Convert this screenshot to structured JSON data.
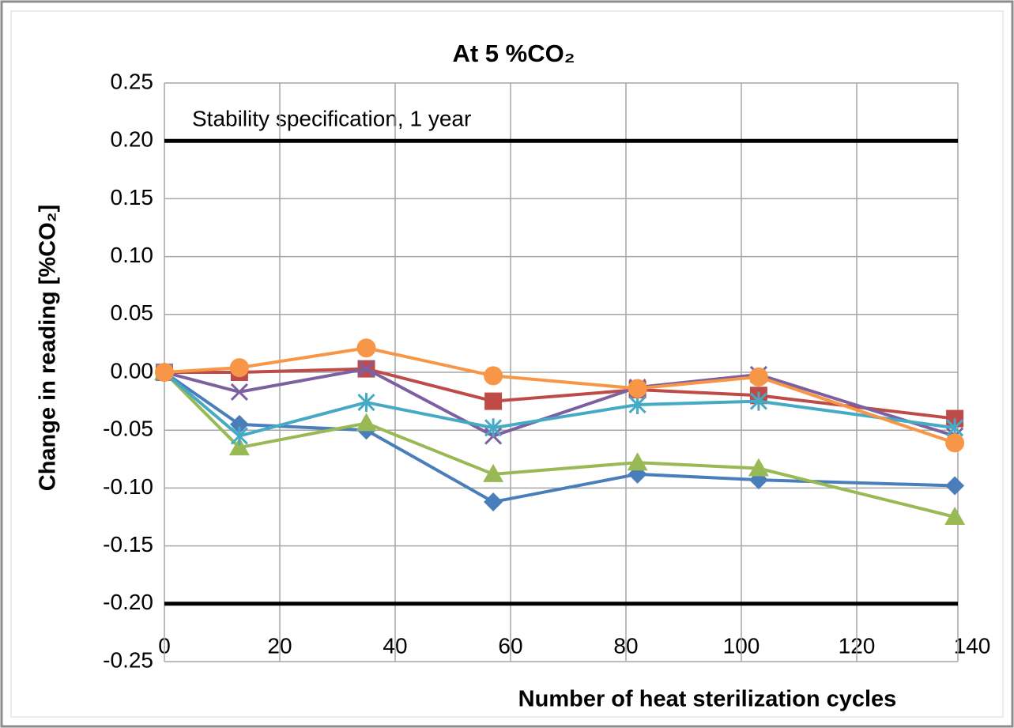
{
  "chart_data": {
    "type": "line",
    "title": "At 5 %CO₂",
    "x_label": "Number of heat sterilization cycles",
    "y_label": "Change in reading [%CO₂]",
    "annotation": "Stability specification, 1 year",
    "spec_lines": [
      0.2,
      -0.2
    ],
    "x": [
      0,
      13,
      35,
      57,
      82,
      103,
      137
    ],
    "xlim": [
      0,
      140
    ],
    "xticks": [
      0,
      20,
      40,
      60,
      80,
      100,
      120,
      140
    ],
    "ylim": [
      -0.25,
      0.25
    ],
    "yticks": [
      {
        "value": 0.25,
        "label": "0.25"
      },
      {
        "value": 0.2,
        "label": "0.20"
      },
      {
        "value": 0.15,
        "label": "0.15"
      },
      {
        "value": 0.1,
        "label": "0.10"
      },
      {
        "value": 0.05,
        "label": "0.05"
      },
      {
        "value": 0,
        "label": "0.00"
      },
      {
        "value": -0.05,
        "label": "-0.05"
      },
      {
        "value": -0.1,
        "label": "-0.10"
      },
      {
        "value": -0.15,
        "label": "-0.15"
      },
      {
        "value": -0.2,
        "label": "-0.20"
      },
      {
        "value": -0.25,
        "label": "-0.25"
      }
    ],
    "grid": true,
    "series": [
      {
        "color": "#4a7ebb",
        "marker": "diamond",
        "values": [
          0,
          -0.045,
          -0.05,
          -0.112,
          -0.088,
          -0.093,
          -0.098
        ]
      },
      {
        "color": "#be4b48",
        "marker": "square",
        "values": [
          0,
          0,
          0.003,
          -0.025,
          -0.015,
          -0.02,
          -0.04
        ]
      },
      {
        "color": "#98b954",
        "marker": "triangle",
        "values": [
          0,
          -0.065,
          -0.044,
          -0.088,
          -0.078,
          -0.083,
          -0.125
        ]
      },
      {
        "color": "#7d60a0",
        "marker": "x",
        "values": [
          0,
          -0.017,
          0.003,
          -0.055,
          -0.013,
          -0.002,
          -0.055
        ]
      },
      {
        "color": "#46aac5",
        "marker": "star",
        "values": [
          0,
          -0.055,
          -0.026,
          -0.048,
          -0.028,
          -0.025,
          -0.048
        ]
      },
      {
        "color": "#f79646",
        "marker": "circle",
        "values": [
          0,
          0.004,
          0.021,
          -0.003,
          -0.014,
          -0.004,
          -0.061
        ]
      }
    ]
  }
}
